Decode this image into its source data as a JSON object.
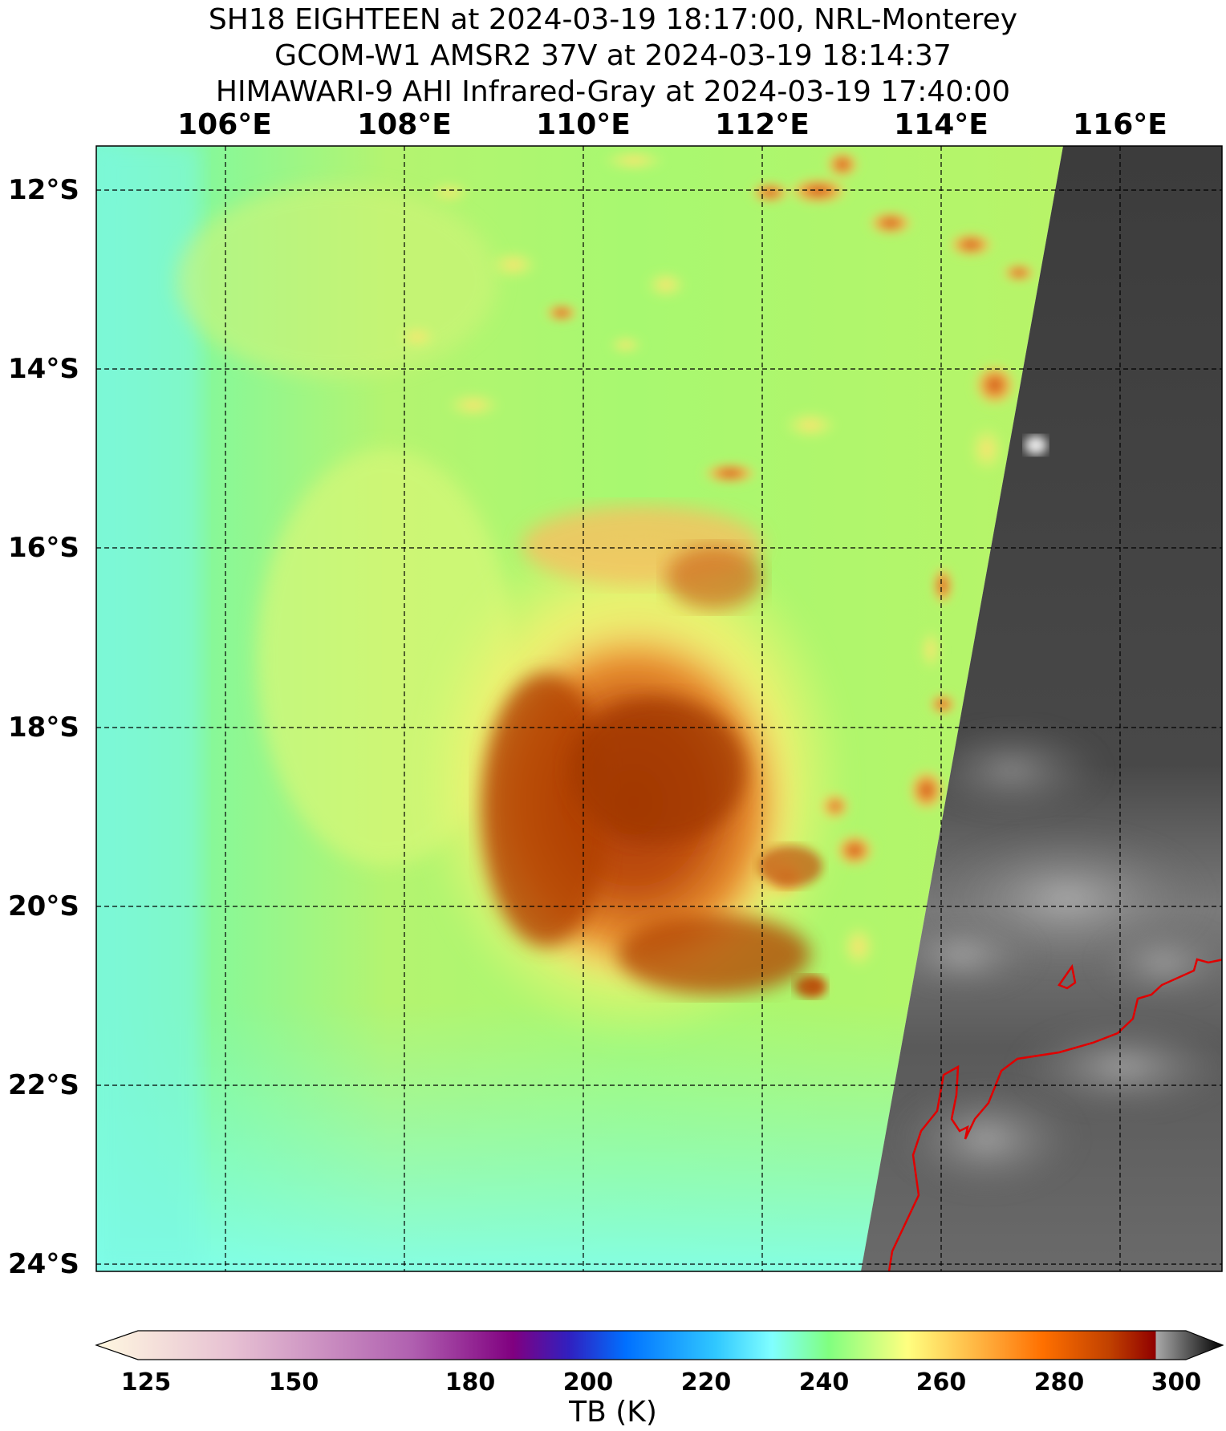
{
  "title": {
    "line1": "SH18 EIGHTEEN at 2024-03-19 18:17:00, NRL-Monterey",
    "line2": "GCOM-W1 AMSR2 37V at 2024-03-19 18:14:37",
    "line3": "HIMAWARI-9 AHI Infrared-Gray at 2024-03-19 17:40:00"
  },
  "map": {
    "lon_ticks": [
      "106°E",
      "108°E",
      "110°E",
      "112°E",
      "114°E",
      "116°E"
    ],
    "lat_ticks": [
      "12°S",
      "14°S",
      "16°S",
      "18°S",
      "20°S",
      "22°S",
      "24°S"
    ],
    "gridlines": "dashed",
    "microwave_tb_range_k": [
      230,
      280
    ],
    "coastline_color": "#e00000",
    "infrared_swath": "right"
  },
  "colorbar": {
    "ticks": [
      "125",
      "150",
      "180",
      "200",
      "220",
      "240",
      "260",
      "280",
      "300"
    ],
    "label": "TB (K)",
    "colors": [
      "#fff8e0",
      "#e7c1d3",
      "#c07ab8",
      "#a040a0",
      "#800080",
      "#3020c0",
      "#0070ff",
      "#30c8ff",
      "#80ffff",
      "#80ff80",
      "#ffff80",
      "#ffa030",
      "#ff7000",
      "#c04000",
      "#900000",
      "#a0a0a0",
      "#000000"
    ]
  }
}
